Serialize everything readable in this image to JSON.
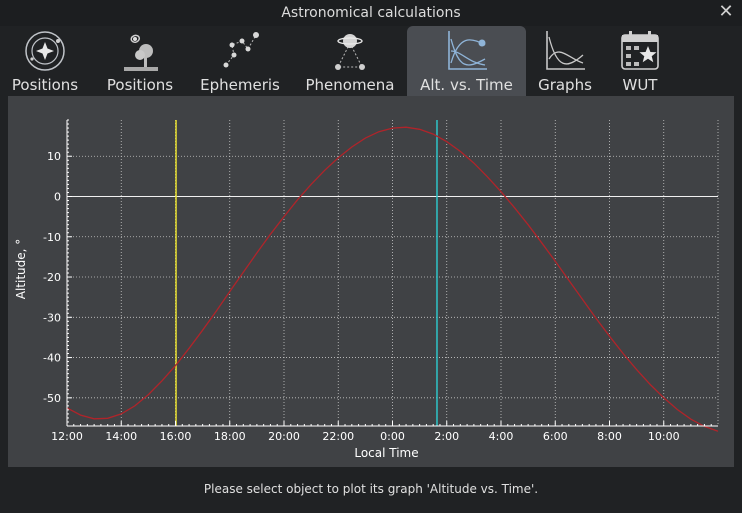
{
  "window": {
    "title": "Astronomical calculations"
  },
  "tabs": [
    {
      "label": "Positions",
      "icon": "orbit-star-icon"
    },
    {
      "label": "Positions",
      "icon": "galaxy-tree-icon"
    },
    {
      "label": "Ephemeris",
      "icon": "constellation-icon"
    },
    {
      "label": "Phenomena",
      "icon": "planet-conjunction-icon"
    },
    {
      "label": "Alt. vs. Time",
      "icon": "altitude-graph-icon"
    },
    {
      "label": "Graphs",
      "icon": "graphs-icon"
    },
    {
      "label": "WUT",
      "icon": "calendar-star-icon"
    }
  ],
  "active_tab": 4,
  "status": "Please select object to plot its graph 'Altitude vs. Time'.",
  "colors": {
    "curve": "#b0242a",
    "now_line": "#e8e030",
    "transit_line": "#2ec4c8",
    "zero_line": "#f0f0f0",
    "grid": "#c8c8c8"
  },
  "chart_data": {
    "type": "line",
    "title": "",
    "xlabel": "Local Time",
    "ylabel": "Altitude, °",
    "x_unit": "hours since 12:00",
    "xlim": [
      0,
      24
    ],
    "ylim": [
      -57,
      19
    ],
    "x_tick_values": [
      0,
      2,
      4,
      6,
      8,
      10,
      12,
      14,
      16,
      18,
      20,
      22
    ],
    "x_tick_labels": [
      "12:00",
      "14:00",
      "16:00",
      "18:00",
      "20:00",
      "22:00",
      "0:00",
      "2:00",
      "4:00",
      "6:00",
      "8:00",
      "10:00"
    ],
    "y_ticks": [
      10,
      0,
      -10,
      -20,
      -30,
      -40,
      -50
    ],
    "grid": true,
    "series": [
      {
        "name": "Altitude",
        "x": [
          0,
          0.5,
          1,
          1.5,
          2,
          2.5,
          3,
          3.5,
          4,
          4.5,
          5,
          5.5,
          6,
          6.5,
          7,
          7.5,
          8,
          8.5,
          9,
          9.5,
          10,
          10.5,
          11,
          11.5,
          12,
          12.5,
          13,
          13.5,
          14,
          14.5,
          15,
          15.5,
          16,
          16.5,
          17,
          17.5,
          18,
          18.5,
          19,
          19.5,
          20,
          20.5,
          21,
          21.5,
          22,
          22.5,
          23,
          23.5,
          24
        ],
        "values": [
          -52.5,
          -54.3,
          -55.2,
          -55.1,
          -54.0,
          -52.0,
          -49.2,
          -45.8,
          -42.0,
          -37.7,
          -33.2,
          -28.5,
          -23.6,
          -18.8,
          -14.0,
          -9.4,
          -5.0,
          -0.8,
          3.0,
          6.5,
          9.6,
          12.3,
          14.5,
          16.1,
          17.0,
          17.2,
          16.7,
          15.5,
          13.6,
          11.2,
          8.3,
          4.9,
          1.2,
          -2.8,
          -7.0,
          -11.5,
          -16.1,
          -20.8,
          -25.5,
          -30.2,
          -34.7,
          -39.0,
          -43.0,
          -46.7,
          -50.0,
          -52.9,
          -55.3,
          -57.1,
          -58.3
        ]
      }
    ],
    "markers": [
      {
        "name": "now",
        "x": 4.02
      },
      {
        "name": "transit",
        "x": 13.64
      }
    ]
  }
}
